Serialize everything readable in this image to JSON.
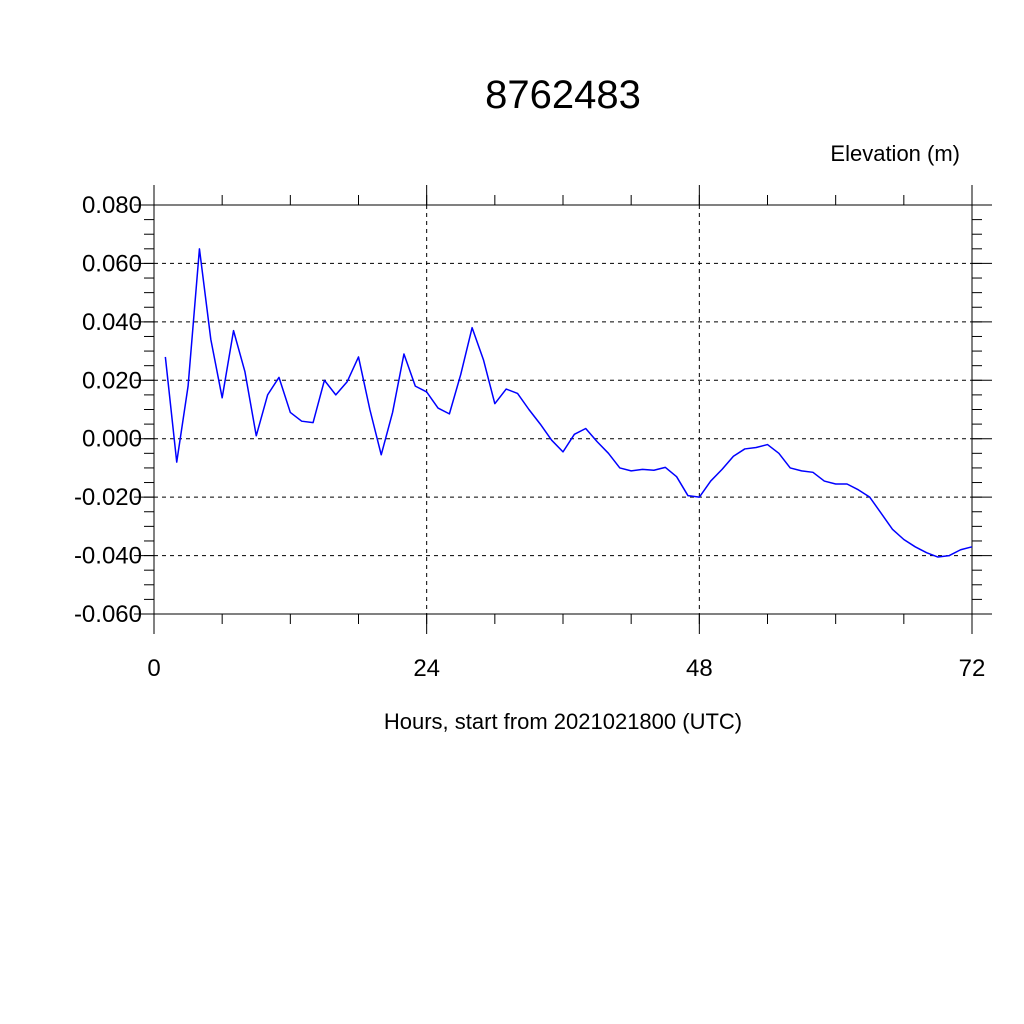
{
  "chart_data": {
    "type": "line",
    "title": "8762483",
    "ylabel": "Elevation (m)",
    "xlabel": "Hours, start from 2021021800 (UTC)",
    "xlim": [
      0,
      72
    ],
    "ylim": [
      -0.06,
      0.08
    ],
    "x_ticks": [
      0,
      24,
      48,
      72
    ],
    "x_tick_labels": [
      "0",
      "24",
      "48",
      "72"
    ],
    "y_ticks": [
      -0.06,
      -0.04,
      -0.02,
      0.0,
      0.02,
      0.04,
      0.06,
      0.08
    ],
    "y_tick_labels": [
      "-0.060",
      "-0.040",
      "-0.020",
      "0.000",
      "0.020",
      "0.040",
      "0.060",
      "0.080"
    ],
    "grid": true,
    "series_color": "#0000ff",
    "x": [
      1,
      2,
      3,
      4,
      5,
      6,
      7,
      8,
      9,
      10,
      11,
      12,
      13,
      14,
      15,
      16,
      17,
      18,
      19,
      20,
      21,
      22,
      23,
      24,
      25,
      26,
      27,
      28,
      29,
      30,
      31,
      32,
      33,
      34,
      35,
      36,
      37,
      38,
      39,
      40,
      41,
      42,
      43,
      44,
      45,
      46,
      47,
      48,
      49,
      50,
      51,
      52,
      53,
      54,
      55,
      56,
      57,
      58,
      59,
      60,
      61,
      62,
      63,
      64,
      65,
      66,
      67,
      68,
      69,
      70,
      71,
      72
    ],
    "series": [
      {
        "values": [
          0.028,
          -0.008,
          0.018,
          0.065,
          0.034,
          0.014,
          0.037,
          0.023,
          0.001,
          0.015,
          0.021,
          0.009,
          0.006,
          0.0055,
          0.02,
          0.015,
          0.0195,
          0.028,
          0.01,
          -0.0055,
          0.009,
          0.029,
          0.018,
          0.016,
          0.0105,
          0.0085,
          0.022,
          0.038,
          0.027,
          0.012,
          0.017,
          0.0155,
          0.01,
          0.005,
          -0.0005,
          -0.0045,
          0.0015,
          0.0035,
          -0.001,
          -0.005,
          -0.01,
          -0.011,
          -0.0105,
          -0.0108,
          -0.0098,
          -0.013,
          -0.0195,
          -0.02,
          -0.0145,
          -0.0105,
          -0.006,
          -0.0035,
          -0.003,
          -0.002,
          -0.005,
          -0.01,
          -0.011,
          -0.0115,
          -0.0145,
          -0.0155,
          -0.0155,
          -0.0175,
          -0.02,
          -0.0255,
          -0.031,
          -0.0345,
          -0.037,
          -0.039,
          -0.0405,
          -0.04,
          -0.038,
          -0.037
        ]
      }
    ]
  }
}
